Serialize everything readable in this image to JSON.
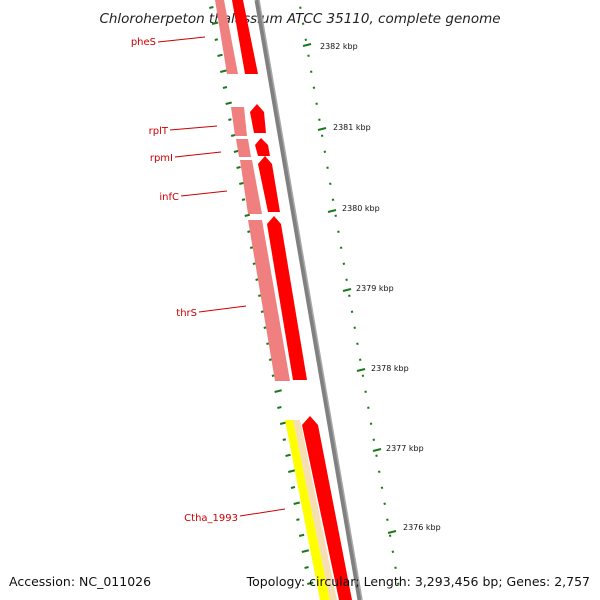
{
  "title": "Chloroherpeton thalassium ATCC 35110, complete genome",
  "accession": "Accession: NC_011026",
  "topology": "Topology: circular; Length: 3,293,456 bp; Genes: 2,757",
  "gene_labels": [
    {
      "label": "pheS",
      "name": "gene-label-phes"
    },
    {
      "label": "rplT",
      "name": "gene-label-rplt"
    },
    {
      "label": "rpmI",
      "name": "gene-label-rpmi"
    },
    {
      "label": "infC",
      "name": "gene-label-infc"
    },
    {
      "label": "thrS",
      "name": "gene-label-thrs"
    },
    {
      "label": "Ctha_1993",
      "name": "gene-label-ctha-1993"
    }
  ],
  "scale_ticks": [
    "2382 kbp",
    "2381 kbp",
    "2380 kbp",
    "2379 kbp",
    "2378 kbp",
    "2377 kbp",
    "2376 kbp"
  ],
  "colors": {
    "cds_feature": "#ff0000",
    "cds_light": "#f08080",
    "other_feature": "#ffff00",
    "other_light": "#f5deb3",
    "backbone": "#808080",
    "gc_ticks": "#1a7a1a",
    "label_red": "#cc0000"
  }
}
